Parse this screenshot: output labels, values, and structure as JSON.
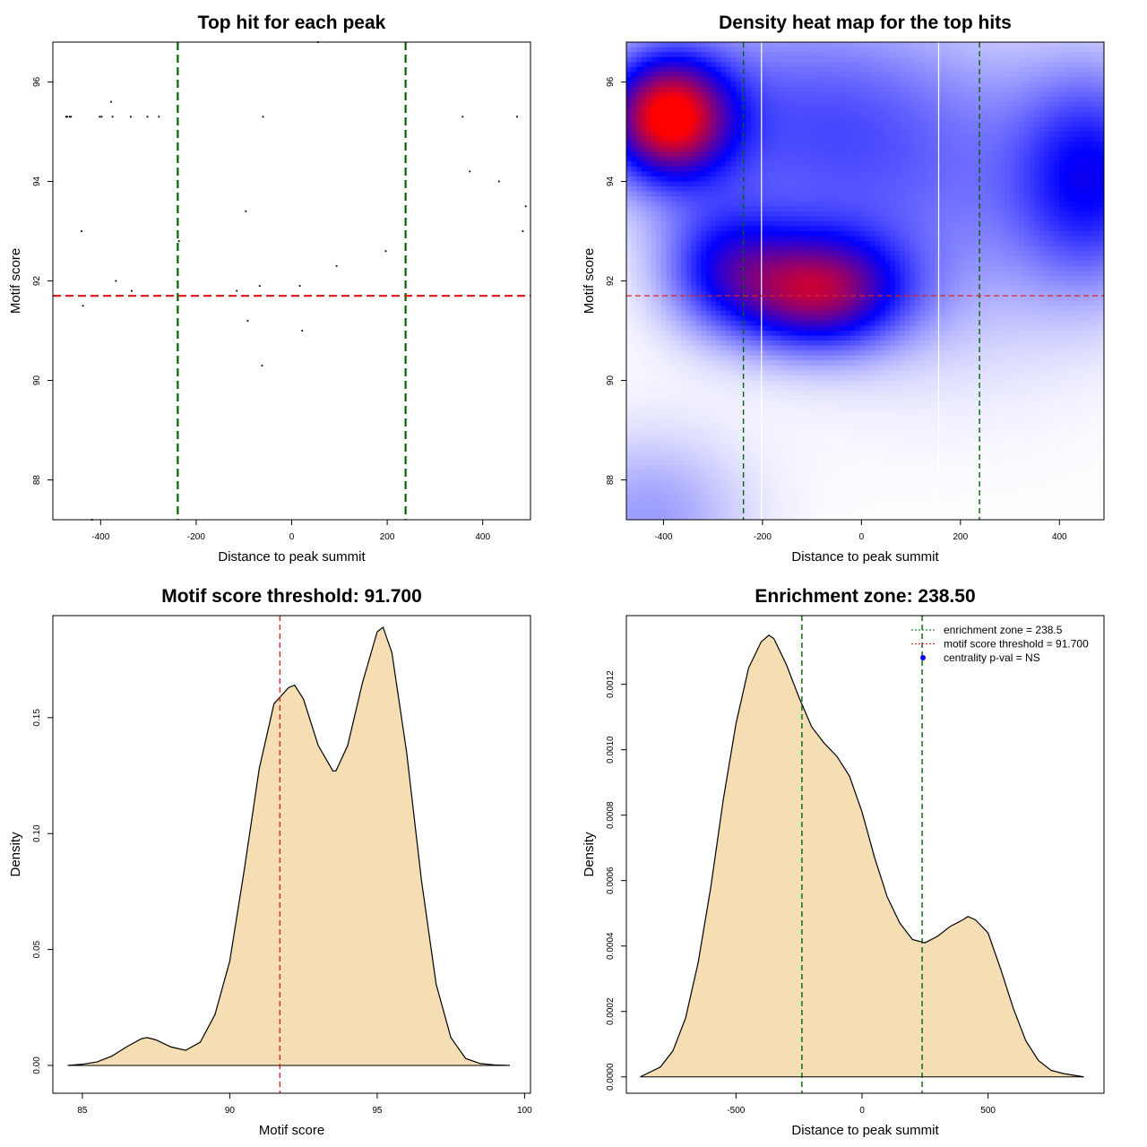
{
  "chart_data": [
    {
      "id": "scatter",
      "type": "scatter",
      "title": "Top hit for each peak",
      "xlabel": "Distance to peak summit",
      "ylabel": "Motif score",
      "xlim": [
        -500,
        500
      ],
      "ylim": [
        87.2,
        96.8
      ],
      "xticks": [
        -400,
        -200,
        0,
        200,
        400
      ],
      "xtick_labels": [
        "-400",
        "-200",
        "0",
        "200",
        "400"
      ],
      "yticks": [
        88,
        90,
        92,
        94,
        96
      ],
      "ytick_labels": [
        "88",
        "90",
        "92",
        "94",
        "96"
      ],
      "vlines": [
        {
          "x": -238.5,
          "color": "#006400",
          "style": "dashed"
        },
        {
          "x": 238.5,
          "color": "#006400",
          "style": "dashed"
        }
      ],
      "hlines": [
        {
          "y": 91.7,
          "color": "#dd2222",
          "style": "dashed"
        }
      ],
      "points": [
        [
          -472,
          95.3
        ],
        [
          -470,
          95.3
        ],
        [
          -465,
          95.3
        ],
        [
          -462,
          95.3
        ],
        [
          -402,
          95.3
        ],
        [
          -398,
          95.3
        ],
        [
          -375,
          95.3
        ],
        [
          -337,
          95.3
        ],
        [
          -302,
          95.3
        ],
        [
          -278,
          95.3
        ],
        [
          -378,
          95.6
        ],
        [
          -60,
          95.3
        ],
        [
          55,
          96.8
        ],
        [
          358,
          95.3
        ],
        [
          472,
          95.3
        ],
        [
          373,
          94.2
        ],
        [
          434,
          94.0
        ],
        [
          490,
          93.5
        ],
        [
          -440,
          93.0
        ],
        [
          -96,
          93.4
        ],
        [
          484,
          93.0
        ],
        [
          -236,
          92.8
        ],
        [
          197,
          92.6
        ],
        [
          94,
          92.3
        ],
        [
          -368,
          92.0
        ],
        [
          -335,
          91.8
        ],
        [
          -115,
          91.8
        ],
        [
          -67,
          91.9
        ],
        [
          17,
          91.9
        ],
        [
          -437,
          91.5
        ],
        [
          -92,
          91.2
        ],
        [
          22,
          91.0
        ],
        [
          -62,
          90.3
        ],
        [
          -418,
          87.2
        ]
      ]
    },
    {
      "id": "heatmap",
      "type": "heatmap",
      "title": "Density heat map for the top hits",
      "xlabel": "Distance to peak summit",
      "ylabel": "Motif score",
      "xlim": [
        -475,
        490
      ],
      "ylim": [
        87.2,
        96.8
      ],
      "xticks": [
        -400,
        -200,
        0,
        200,
        400
      ],
      "xtick_labels": [
        "-400",
        "-200",
        "0",
        "200",
        "400"
      ],
      "yticks": [
        88,
        90,
        92,
        94,
        96
      ],
      "ytick_labels": [
        "88",
        "90",
        "92",
        "94",
        "96"
      ],
      "vlines": [
        {
          "x": -238.5,
          "color": "#006400",
          "style": "dashed"
        },
        {
          "x": 238.5,
          "color": "#006400",
          "style": "dashed"
        }
      ],
      "hlines": [
        {
          "y": 91.7,
          "color": "#dd2222",
          "style": "dashed"
        }
      ],
      "white_seams_x": [
        -202,
        156
      ],
      "density_blobs": [
        {
          "x": -390,
          "y": 95.3,
          "sx": 85,
          "sy": 0.85,
          "weight": 1.15
        },
        {
          "x": -90,
          "y": 91.8,
          "sx": 120,
          "sy": 0.8,
          "weight": 0.95
        },
        {
          "x": -280,
          "y": 92.3,
          "sx": 90,
          "sy": 0.9,
          "weight": 0.45
        },
        {
          "x": 470,
          "y": 94.1,
          "sx": 110,
          "sy": 1.5,
          "weight": 0.55
        },
        {
          "x": -150,
          "y": 95.3,
          "sx": 260,
          "sy": 1.6,
          "weight": 0.35
        },
        {
          "x": 150,
          "y": 93.5,
          "sx": 250,
          "sy": 2.2,
          "weight": 0.25
        },
        {
          "x": -430,
          "y": 87.2,
          "sx": 140,
          "sy": 1.2,
          "weight": 0.25
        }
      ],
      "colors": [
        "#ffffff",
        "#0000ff",
        "#ff0000"
      ]
    },
    {
      "id": "score_density",
      "type": "area",
      "title": "Motif score threshold: 91.700",
      "xlabel": "Motif score",
      "ylabel": "Density",
      "xlim": [
        84,
        100.2
      ],
      "ylim": [
        -0.012,
        0.194
      ],
      "xticks": [
        85,
        90,
        95,
        100
      ],
      "xtick_labels": [
        "85",
        "90",
        "95",
        "100"
      ],
      "yticks": [
        0,
        0.05,
        0.1,
        0.15
      ],
      "ytick_labels": [
        "0.00",
        "0.05",
        "0.10",
        "0.15"
      ],
      "fill": "#f5deb3",
      "vlines": [
        {
          "x": 91.7,
          "color": "#dd2222",
          "style": "dashed"
        }
      ],
      "x": [
        84.5,
        85.0,
        85.5,
        86.0,
        86.5,
        87.0,
        87.2,
        87.5,
        88.0,
        88.5,
        89.0,
        89.5,
        90.0,
        90.5,
        91.0,
        91.5,
        92.0,
        92.2,
        92.5,
        93.0,
        93.5,
        93.6,
        94.0,
        94.5,
        95.0,
        95.2,
        95.5,
        96.0,
        96.5,
        97.0,
        97.5,
        98.0,
        98.5,
        99.0,
        99.5
      ],
      "y": [
        0.0,
        0.0005,
        0.0015,
        0.004,
        0.008,
        0.0115,
        0.012,
        0.011,
        0.008,
        0.0065,
        0.01,
        0.022,
        0.045,
        0.085,
        0.128,
        0.156,
        0.163,
        0.164,
        0.158,
        0.138,
        0.127,
        0.127,
        0.138,
        0.165,
        0.187,
        0.189,
        0.178,
        0.135,
        0.08,
        0.035,
        0.012,
        0.003,
        0.0008,
        0.0002,
        0.0
      ]
    },
    {
      "id": "distance_density",
      "type": "area",
      "title": "Enrichment zone: 238.50",
      "xlabel": "Distance to peak summit",
      "ylabel": "Density",
      "xlim": [
        -935,
        960
      ],
      "ylim": [
        -5e-05,
        0.00141
      ],
      "xticks": [
        -500,
        0,
        500
      ],
      "xtick_labels": [
        "-500",
        "0",
        "500"
      ],
      "yticks": [
        0,
        0.0002,
        0.0004,
        0.0006,
        0.0008,
        0.001,
        0.0012
      ],
      "ytick_labels": [
        "0.0000",
        "0.0002",
        "0.0004",
        "0.0006",
        "0.0008",
        "0.0010",
        "0.0012"
      ],
      "fill": "#f5deb3",
      "vlines": [
        {
          "x": -238.5,
          "color": "#006400",
          "style": "dashed"
        },
        {
          "x": 238.5,
          "color": "#006400",
          "style": "dashed"
        }
      ],
      "x": [
        -880,
        -800,
        -750,
        -700,
        -650,
        -600,
        -550,
        -500,
        -450,
        -400,
        -370,
        -350,
        -300,
        -250,
        -200,
        -150,
        -100,
        -50,
        0,
        50,
        100,
        150,
        200,
        250,
        300,
        350,
        400,
        420,
        450,
        500,
        550,
        600,
        650,
        700,
        750,
        800,
        880
      ],
      "y": [
        0.0,
        3e-05,
        8e-05,
        0.00018,
        0.00035,
        0.00058,
        0.00085,
        0.00108,
        0.00125,
        0.00133,
        0.00135,
        0.00134,
        0.00126,
        0.00116,
        0.00107,
        0.00102,
        0.00098,
        0.00092,
        0.00081,
        0.00067,
        0.00055,
        0.00047,
        0.00042,
        0.00041,
        0.00043,
        0.00046,
        0.00048,
        0.00049,
        0.00048,
        0.00044,
        0.00033,
        0.00021,
        0.00011,
        5e-05,
        2e-05,
        1e-05,
        0.0
      ],
      "legend": {
        "position": "top-right",
        "entries": [
          {
            "label": "enrichment zone = 238.5",
            "color": "#006400",
            "symbol": "dotted-line"
          },
          {
            "label": "motif score threshold = 91.700",
            "color": "#dd2222",
            "symbol": "dotted-line"
          },
          {
            "label": "centrality p-val = NS",
            "color": "#0000ff",
            "symbol": "point"
          }
        ]
      }
    }
  ]
}
